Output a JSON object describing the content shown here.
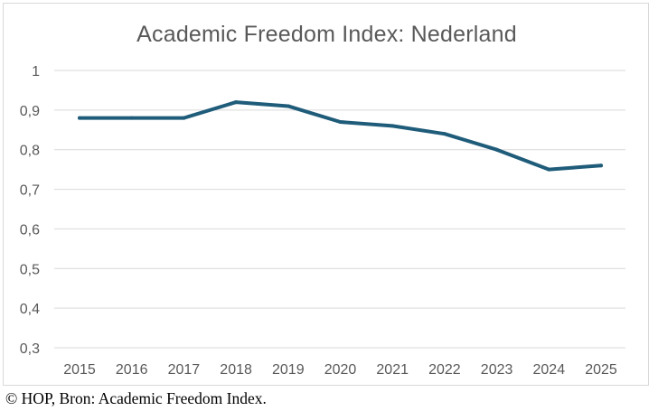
{
  "caption": "© HOP, Bron: Academic Freedom Index.",
  "chart_data": {
    "type": "line",
    "title": "Academic Freedom Index: Nederland",
    "xlabel": "",
    "ylabel": "",
    "x": [
      "2015",
      "2016",
      "2017",
      "2018",
      "2019",
      "2020",
      "2021",
      "2022",
      "2023",
      "2024",
      "2025"
    ],
    "series": [
      {
        "values": [
          0.88,
          0.88,
          0.88,
          0.92,
          0.91,
          0.87,
          0.86,
          0.84,
          0.8,
          0.75,
          0.76
        ],
        "color": "#1f5c7a"
      }
    ],
    "ylim": [
      0.3,
      1.0
    ],
    "yticks": [
      "1",
      "0,9",
      "0,8",
      "0,7",
      "0,6",
      "0,5",
      "0,4",
      "0,3"
    ],
    "ytick_values": [
      1.0,
      0.9,
      0.8,
      0.7,
      0.6,
      0.5,
      0.4,
      0.3
    ],
    "grid": true,
    "legend": "none",
    "gridline_color": "#d9d9d9"
  }
}
